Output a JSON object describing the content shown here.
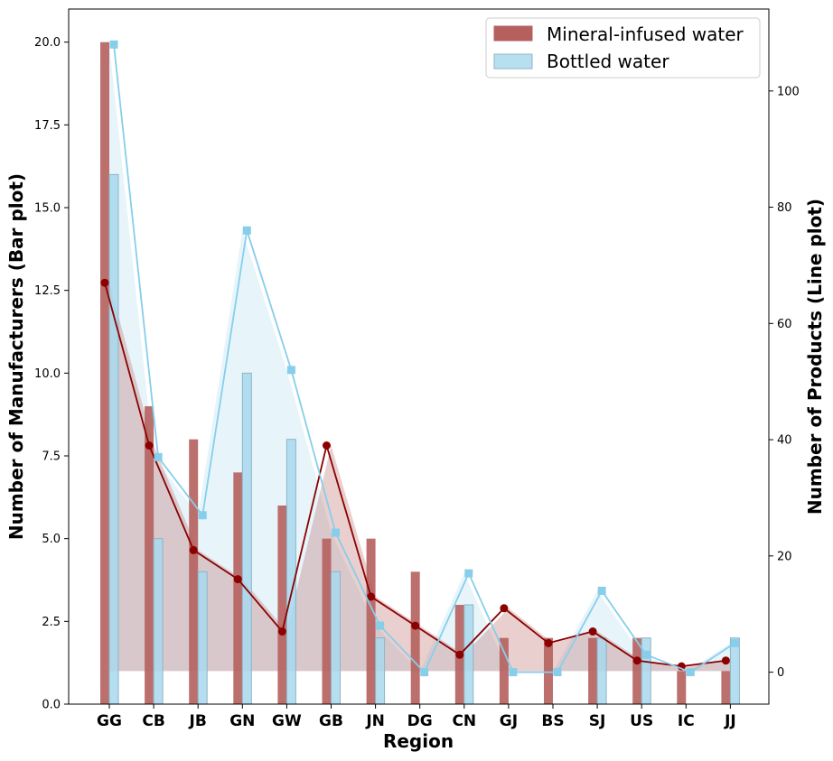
{
  "chart_data": {
    "type": "bar",
    "title": "",
    "xlabel": "Region",
    "ylabel_left": "Number of Manufacturers (Bar plot)",
    "ylabel_right": "Number of Products (Line plot)",
    "categories": [
      "GG",
      "CB",
      "JB",
      "GN",
      "GW",
      "GB",
      "JN",
      "DG",
      "CN",
      "GJ",
      "BS",
      "SJ",
      "US",
      "IC",
      "JJ"
    ],
    "ylim_left": [
      0,
      21
    ],
    "ylim_right": [
      -5.5,
      114.1
    ],
    "yticks_left": [
      "0.0",
      "2.5",
      "5.0",
      "7.5",
      "10.0",
      "12.5",
      "15.0",
      "17.5",
      "20.0"
    ],
    "yticks_right": [
      "0",
      "20",
      "40",
      "60",
      "80",
      "100"
    ],
    "legend_position": "top-right",
    "grid": false,
    "bar_series": [
      {
        "name": "Mineral-infused water",
        "color": "#b5605e",
        "values": [
          20,
          9,
          8,
          7,
          6,
          5,
          5,
          4,
          3,
          2,
          2,
          2,
          2,
          1,
          1
        ]
      },
      {
        "name": "Bottled water",
        "color": "#a8d8ee",
        "values": [
          16,
          5,
          4,
          10,
          8,
          4,
          2,
          0,
          3,
          0,
          0,
          2,
          2,
          0,
          2
        ]
      }
    ],
    "line_series": [
      {
        "series": "Mineral-infused water",
        "color": "#8b0000",
        "marker": "circle",
        "values": [
          67,
          39,
          21,
          16,
          7,
          39,
          13,
          8,
          3,
          11,
          5,
          7,
          2,
          1,
          2
        ]
      },
      {
        "series": "Bottled water",
        "color": "#87ceeb",
        "marker": "square",
        "values": [
          108,
          37,
          27,
          76,
          52,
          24,
          8,
          0,
          17,
          0,
          0,
          14,
          3,
          0,
          5
        ]
      }
    ]
  }
}
